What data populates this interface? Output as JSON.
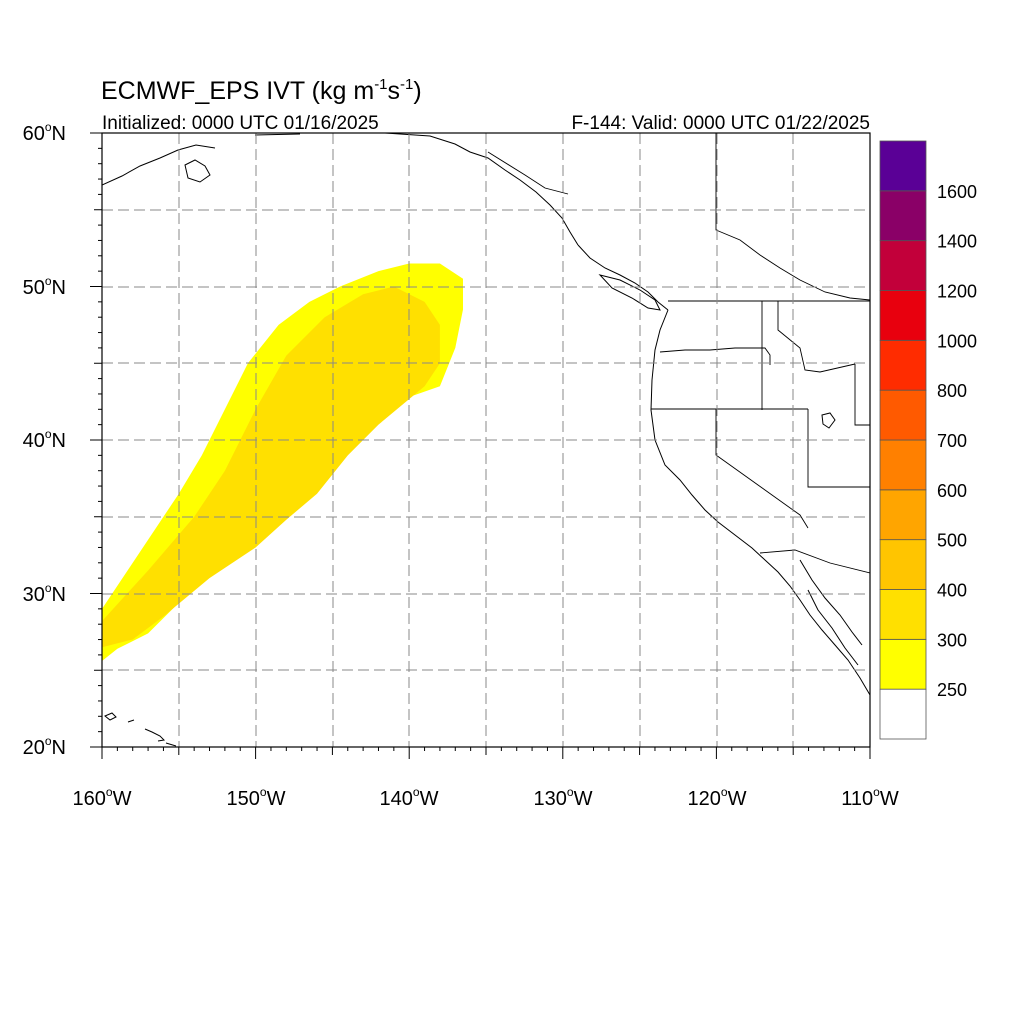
{
  "title": {
    "main": "ECMWF_EPS IVT (kg m",
    "exp1": "-1",
    "mid": "s",
    "exp2": "-1",
    "close": ")",
    "initialized": "Initialized: 0000 UTC 01/16/2025",
    "valid": "F-144: Valid: 0000 UTC 01/22/2025"
  },
  "map": {
    "lon_range": [
      -160,
      -110
    ],
    "lat_range": [
      20,
      60
    ],
    "grid": true,
    "grid_style": "dashed",
    "x_ticks": [
      "160",
      "150",
      "140",
      "130",
      "120",
      "110"
    ],
    "x_suffix": "W",
    "y_ticks": [
      "20",
      "30",
      "40",
      "50",
      "60"
    ],
    "y_suffix": "N",
    "degree_symbol": "o",
    "coastlines": true,
    "state_borders": true
  },
  "chart_data": {
    "type": "heatmap",
    "field": "Integrated Vapor Transport",
    "units": "kg m-1 s-1",
    "feature": "atmospheric river plume extending from about 27N 160W northeast to about 50N 137W",
    "contours": [
      {
        "level": 250,
        "color": "#ffff00",
        "points": [
          [
            -160,
            25.6
          ],
          [
            -159,
            26.4
          ],
          [
            -157,
            27.4
          ],
          [
            -155,
            29.4
          ],
          [
            -153,
            32
          ],
          [
            -150,
            34.5
          ],
          [
            -148,
            36
          ],
          [
            -146,
            37
          ],
          [
            -144,
            40
          ],
          [
            -142,
            42
          ],
          [
            -140,
            42.8
          ],
          [
            -138,
            43.5
          ],
          [
            -137,
            46
          ],
          [
            -136.5,
            48.5
          ],
          [
            -136.5,
            50.5
          ],
          [
            -138,
            51.5
          ],
          [
            -140,
            51.5
          ],
          [
            -142,
            51
          ],
          [
            -144.5,
            50
          ],
          [
            -146.5,
            49
          ],
          [
            -148.5,
            47.5
          ],
          [
            -150.5,
            45
          ],
          [
            -152,
            42
          ],
          [
            -153.5,
            39
          ],
          [
            -155,
            36.5
          ],
          [
            -157,
            33.5
          ],
          [
            -159,
            30.5
          ],
          [
            -160,
            29
          ]
        ]
      },
      {
        "level": 300,
        "color": "#ffe000",
        "points": [
          [
            -160,
            26.5
          ],
          [
            -158,
            27
          ],
          [
            -156,
            28.5
          ],
          [
            -153,
            31
          ],
          [
            -150,
            33
          ],
          [
            -148,
            34.8
          ],
          [
            -146,
            36.5
          ],
          [
            -144,
            39
          ],
          [
            -142,
            41
          ],
          [
            -139,
            43.5
          ],
          [
            -138,
            45
          ],
          [
            -138,
            47.5
          ],
          [
            -139,
            49
          ],
          [
            -141,
            50
          ],
          [
            -143,
            49.5
          ],
          [
            -145.5,
            48
          ],
          [
            -148,
            45.5
          ],
          [
            -150,
            42
          ],
          [
            -152,
            38
          ],
          [
            -154,
            35
          ],
          [
            -157,
            31.5
          ],
          [
            -160,
            28.2
          ]
        ]
      }
    ],
    "colorbar": {
      "levels": [
        "250",
        "300",
        "400",
        "500",
        "600",
        "700",
        "800",
        "1000",
        "1200",
        "1400",
        "1600"
      ],
      "colors": [
        "#ffffff",
        "#ffff00",
        "#ffe000",
        "#ffc500",
        "#ffa500",
        "#ff8000",
        "#ff5a00",
        "#ff2c00",
        "#e8000e",
        "#c2003a",
        "#8a0067",
        "#5a0096"
      ]
    }
  }
}
